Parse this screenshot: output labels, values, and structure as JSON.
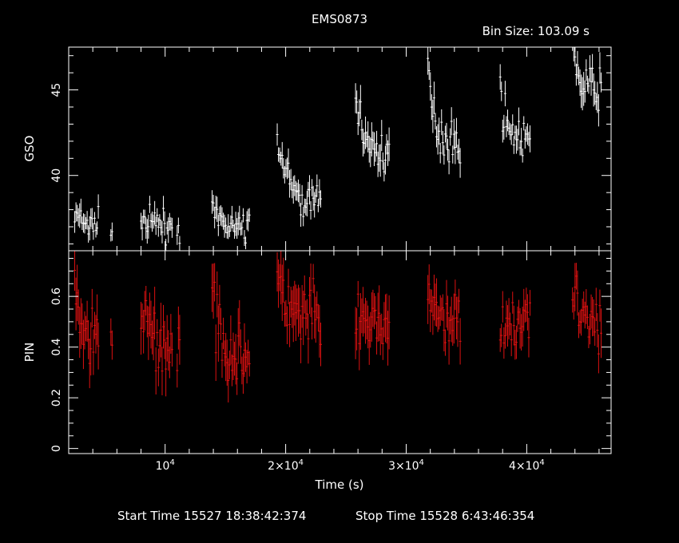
{
  "chart_data": {
    "type": "scatter",
    "title": "EMS0873",
    "bin_size_label": "Bin Size:  103.09  s",
    "xlabel": "Time (s)",
    "x_ticks": [
      {
        "value": 10000,
        "label": "10",
        "exp": "4"
      },
      {
        "value": 20000,
        "label": "2×10",
        "exp": "4"
      },
      {
        "value": 30000,
        "label": "3×10",
        "exp": "4"
      },
      {
        "value": 40000,
        "label": "4×10",
        "exp": "4"
      }
    ],
    "xlim": [
      2000,
      47000
    ],
    "start_time_label": "Start Time  15527  18:38:42:374",
    "stop_time_label": "Stop Time  15528   6:43:46:354",
    "segments": [
      [
        2500,
        4500,
        5500,
        5700
      ],
      [
        8000,
        10600,
        11000,
        11300
      ],
      [
        13900,
        17000
      ],
      [
        19300,
        23000
      ],
      [
        25800,
        28600
      ],
      [
        31800,
        34500
      ],
      [
        37800,
        40300
      ],
      [
        43800,
        46200
      ]
    ],
    "panels": [
      {
        "name": "GSO",
        "ylabel": "GSO",
        "color": "#ffffff",
        "ylim": [
          35.6,
          47.5
        ],
        "y_ticks": [
          40,
          45
        ],
        "y_minor_step": 1,
        "profiles": [
          {
            "level": 37.0,
            "start": 37.7,
            "spread": 0.6
          },
          {
            "level": 37.1,
            "start": 37.3,
            "spread": 0.6
          },
          {
            "level": 36.9,
            "start": 37.8,
            "spread": 0.6
          },
          {
            "level": 38.3,
            "start": 42.5,
            "spread": 0.7
          },
          {
            "level": 41.3,
            "start": 45.0,
            "spread": 0.8
          },
          {
            "level": 41.8,
            "start": 46.0,
            "spread": 0.8
          },
          {
            "level": 42.0,
            "start": 45.0,
            "spread": 0.7
          },
          {
            "level": 45.0,
            "start": 47.3,
            "spread": 0.8
          }
        ]
      },
      {
        "name": "PIN",
        "ylabel": "PIN",
        "color": "#dd1111",
        "ylim": [
          -0.02,
          0.78
        ],
        "y_ticks": [
          0,
          0.2,
          0.4,
          0.6
        ],
        "y_minor_step": 0.05,
        "profiles": [
          {
            "level": 0.38,
            "start": 0.66,
            "spread": 0.09
          },
          {
            "level": 0.4,
            "start": 0.55,
            "spread": 0.09
          },
          {
            "level": 0.36,
            "start": 0.62,
            "spread": 0.09
          },
          {
            "level": 0.5,
            "start": 0.65,
            "spread": 0.09
          },
          {
            "level": 0.5,
            "start": 0.45,
            "spread": 0.09
          },
          {
            "level": 0.5,
            "start": 0.58,
            "spread": 0.08
          },
          {
            "level": 0.5,
            "start": 0.52,
            "spread": 0.07
          },
          {
            "level": 0.5,
            "start": 0.62,
            "spread": 0.08
          }
        ]
      }
    ]
  }
}
